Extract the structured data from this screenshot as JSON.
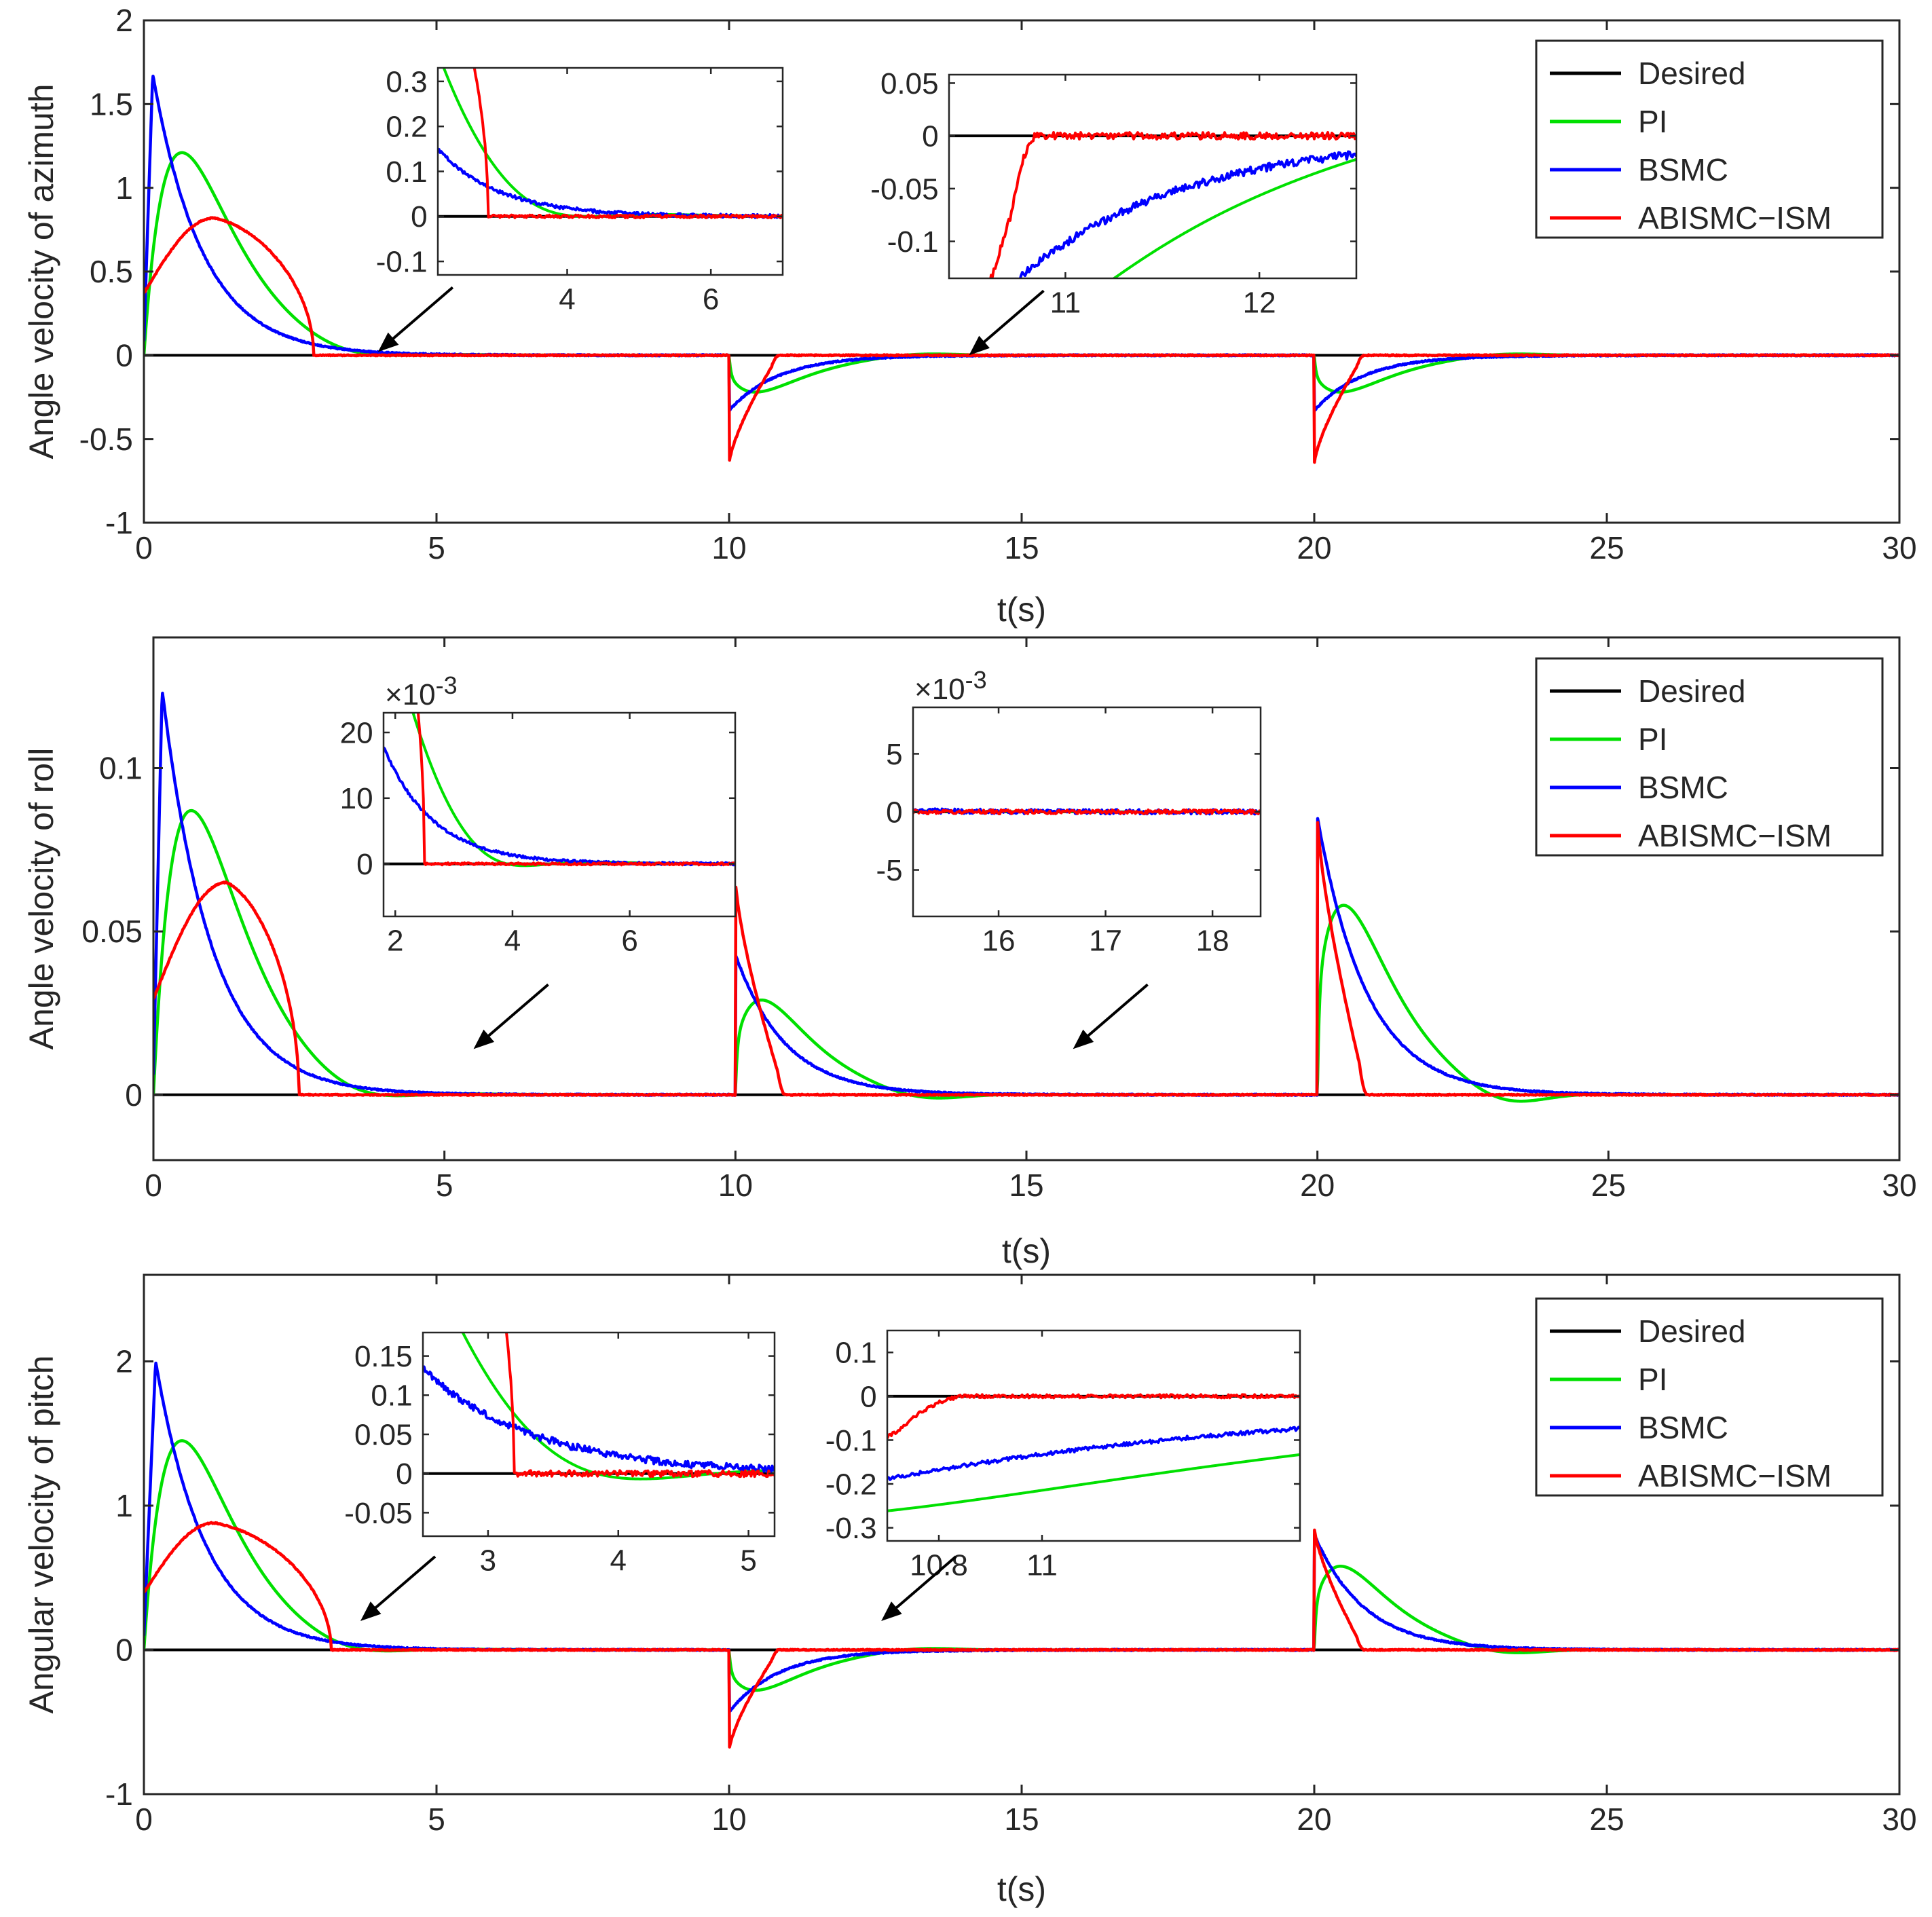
{
  "colors": {
    "desired": "#000000",
    "pi": "#00e000",
    "bsmc": "#0000ff",
    "abismc": "#ff0000",
    "axis": "#262626"
  },
  "legend": {
    "desired": "Desired",
    "pi": "PI",
    "bsmc": "BSMC",
    "abismc": "ABISMC−ISM"
  },
  "chart_data": [
    {
      "type": "line",
      "id": "azimuth",
      "ylabel": "Angle velocity of azimuth",
      "xlabel": "t(s)",
      "xlim": [
        0,
        30
      ],
      "ylim": [
        -1,
        2
      ],
      "xticks": [
        0,
        5,
        10,
        15,
        20,
        25,
        30
      ],
      "yticks": [
        -1,
        -0.5,
        0,
        0.5,
        1,
        1.5,
        2
      ],
      "yticklabels": [
        "-1",
        "-0.5",
        "0",
        "0.5",
        "1",
        "1.5",
        "2"
      ],
      "legend_position": "top-right",
      "disturbances": [
        {
          "t": 10,
          "abismc": -0.65,
          "bsmc": -0.33,
          "pi_dip": -0.22,
          "kind": "neg"
        },
        {
          "t": 20,
          "abismc": -0.65,
          "bsmc": -0.33,
          "pi_dip": -0.22,
          "kind": "neg"
        }
      ],
      "startup": {
        "abismc_peak": 0.82,
        "abismc_peak_t": 1.2,
        "abismc_settle_t": 2.9,
        "bsmc_peak": 1.68,
        "bsmc_peak_t": 0.15,
        "pi_peak": 1.21,
        "pi_peak_t": 0.65,
        "pi_undershoot": -0.05
      },
      "insets": [
        {
          "xlim": [
            2.2,
            7
          ],
          "ylim": [
            -0.13,
            0.33
          ],
          "xticks": [
            4,
            6
          ],
          "yticks": [
            -0.1,
            0,
            0.1,
            0.2,
            0.3
          ],
          "yticklabels": [
            "-0.1",
            "0",
            "0.1",
            "0.2",
            "0.3"
          ],
          "exponent": "",
          "arrow_to": [
            4.0,
            0.02
          ]
        },
        {
          "xlim": [
            10.4,
            12.5
          ],
          "ylim": [
            -0.135,
            0.058
          ],
          "xticks": [
            11,
            12
          ],
          "yticks": [
            -0.1,
            -0.05,
            0,
            0.05
          ],
          "yticklabels": [
            "-0.1",
            "-0.05",
            "0",
            "0.05"
          ],
          "exponent": "",
          "arrow_to": [
            14.1,
            0.0
          ]
        }
      ]
    },
    {
      "type": "line",
      "id": "roll",
      "ylabel": "Angle velocity of roll",
      "xlabel": "t(s)",
      "xlim": [
        0,
        30
      ],
      "ylim": [
        -0.02,
        0.14
      ],
      "xticks": [
        0,
        5,
        10,
        15,
        20,
        25,
        30
      ],
      "yticks": [
        0,
        0.05,
        0.1
      ],
      "yticklabels": [
        "0",
        "0.05",
        "0.1"
      ],
      "legend_position": "top-right",
      "disturbances": [
        {
          "t": 10,
          "abismc": 0.066,
          "bsmc": 0.043,
          "pi_peak": 0.029,
          "kind": "pos"
        },
        {
          "t": 20,
          "abismc": 0.085,
          "bsmc": 0.085,
          "pi_peak": 0.058,
          "kind": "pos"
        }
      ],
      "startup": {
        "abismc_peak": 0.065,
        "abismc_peak_t": 1.25,
        "abismc_settle_t": 2.5,
        "bsmc_peak": 0.124,
        "bsmc_peak_t": 0.15,
        "pi_peak": 0.087,
        "pi_peak_t": 0.65,
        "pi_undershoot": -0.004
      },
      "insets": [
        {
          "xlim": [
            1.8,
            7.8
          ],
          "ylim": [
            -0.008,
            0.023
          ],
          "xticks": [
            2,
            4,
            6
          ],
          "yticks": [
            0,
            0.01,
            0.02
          ],
          "yticklabels": [
            "0",
            "10",
            "20"
          ],
          "exponent": "×10",
          "exponent_power": "-3",
          "arrow_to": [
            5.5,
            0.014
          ]
        },
        {
          "xlim": [
            15.2,
            18.45
          ],
          "ylim": [
            -0.009,
            0.009
          ],
          "xticks": [
            16,
            17,
            18
          ],
          "yticks": [
            -0.005,
            0,
            0.005
          ],
          "yticklabels": [
            "-5",
            "0",
            "5"
          ],
          "exponent": "×10",
          "exponent_power": "-3",
          "arrow_to": [
            15.8,
            0.014
          ]
        }
      ]
    },
    {
      "type": "line",
      "id": "pitch",
      "ylabel": "Angular velocity of pitch",
      "xlabel": "t(s)",
      "xlim": [
        0,
        30
      ],
      "ylim": [
        -1,
        2.6
      ],
      "xticks": [
        0,
        5,
        10,
        15,
        20,
        25,
        30
      ],
      "yticks": [
        -1,
        0,
        1,
        2
      ],
      "yticklabels": [
        "-1",
        "0",
        "1",
        "2"
      ],
      "legend_position": "top-right",
      "disturbances": [
        {
          "t": 10,
          "abismc": -0.7,
          "bsmc": -0.43,
          "pi_dip": -0.28,
          "kind": "neg"
        },
        {
          "t": 20,
          "abismc": 0.85,
          "bsmc": 0.8,
          "pi_peak": 0.58,
          "kind": "pos"
        }
      ],
      "startup": {
        "abismc_peak": 0.88,
        "abismc_peak_t": 1.2,
        "abismc_settle_t": 3.2,
        "bsmc_peak": 2.0,
        "bsmc_peak_t": 0.2,
        "pi_peak": 1.45,
        "pi_peak_t": 0.65,
        "pi_undershoot": -0.07
      },
      "insets": [
        {
          "xlim": [
            2.5,
            5.2
          ],
          "ylim": [
            -0.08,
            0.18
          ],
          "xticks": [
            3,
            4,
            5
          ],
          "yticks": [
            -0.05,
            0,
            0.05,
            0.1,
            0.15
          ],
          "yticklabels": [
            "-0.05",
            "0",
            "0.05",
            "0.1",
            "0.15"
          ],
          "exponent": "",
          "arrow_to": [
            3.7,
            0.2
          ]
        },
        {
          "xlim": [
            10.7,
            11.5
          ],
          "ylim": [
            -0.33,
            0.15
          ],
          "xticks": [
            10.8,
            11
          ],
          "yticks": [
            -0.3,
            -0.2,
            -0.1,
            0,
            0.1
          ],
          "yticklabels": [
            "-0.3",
            "-0.2",
            "-0.1",
            "0",
            "0.1"
          ],
          "exponent": "",
          "arrow_to": [
            12.6,
            0.2
          ]
        }
      ]
    }
  ]
}
